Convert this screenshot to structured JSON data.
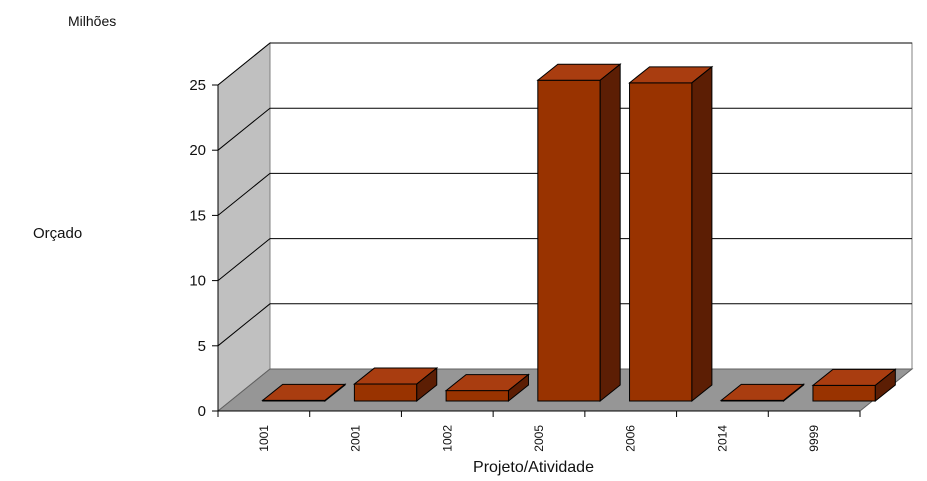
{
  "chart_data": {
    "type": "bar",
    "title": "",
    "unit_label": "Milhões",
    "ylabel": "Orçado",
    "xlabel": "Projeto/Atividade",
    "categories": [
      "1001",
      "2001",
      "1002",
      "2005",
      "2006",
      "2014",
      "9999"
    ],
    "values": [
      0.05,
      1.3,
      0.8,
      24.6,
      24.4,
      0.05,
      1.2
    ],
    "ylim": [
      0,
      25
    ],
    "yticks": [
      0,
      5,
      10,
      15,
      20,
      25
    ],
    "grid": true,
    "style": "3d",
    "colors": {
      "bar_front": "#993300",
      "bar_top": "#a93d10",
      "bar_side": "#5c1e04",
      "back_wall": "#ffffff",
      "side_wall": "#c0c0c0",
      "floor": "#969696",
      "gridline": "#000000"
    }
  }
}
